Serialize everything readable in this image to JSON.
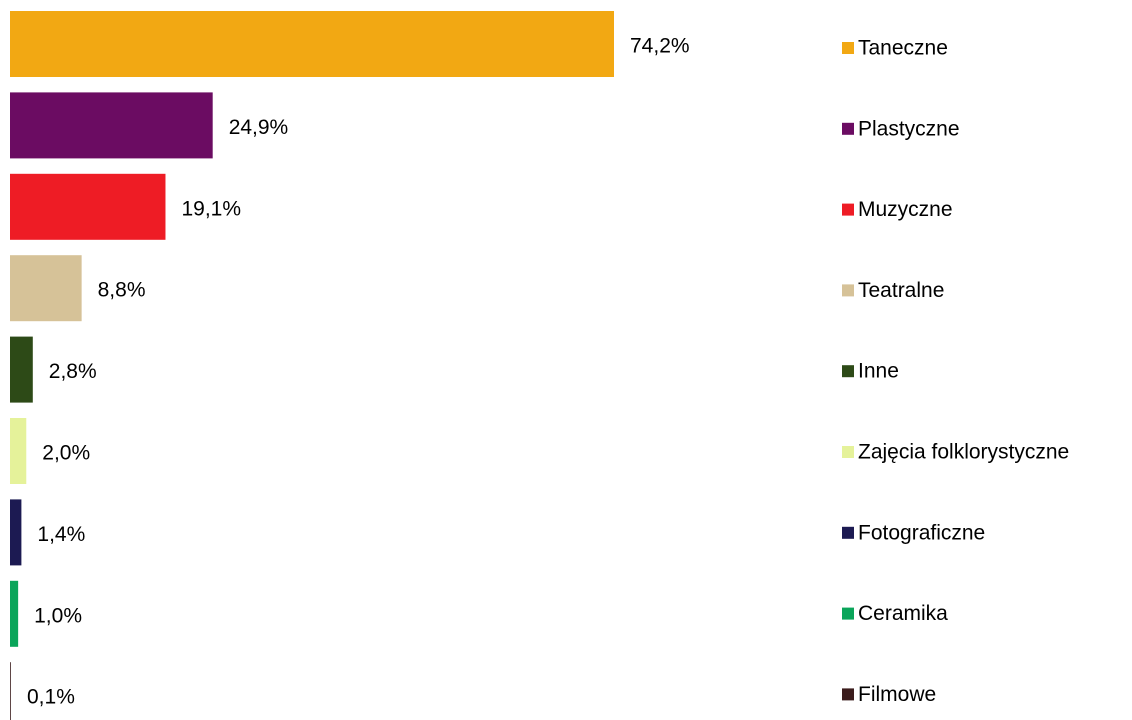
{
  "chart_data": {
    "type": "bar",
    "categories": [
      "Taneczne",
      "Plastyczne",
      "Muzyczne",
      "Teatralne",
      "Inne",
      "Zajęcia folklorystyczne",
      "Fotograficzne",
      "Ceramika",
      "Filmowe"
    ],
    "values": [
      74.2,
      24.9,
      19.1,
      8.8,
      2.8,
      2.0,
      1.4,
      1.0,
      0.1
    ],
    "value_labels": [
      "74,2%",
      "24,9%",
      "19,1%",
      "8,8%",
      "2,8%",
      "2,0%",
      "1,4%",
      "1,0%",
      "0,1%"
    ],
    "colors": [
      "#f2a813",
      "#6b0c62",
      "#ee1c25",
      "#d6c298",
      "#2d4a17",
      "#e5f29a",
      "#1c1a52",
      "#0aa55a",
      "#3b1c1c"
    ],
    "legend": "right"
  }
}
